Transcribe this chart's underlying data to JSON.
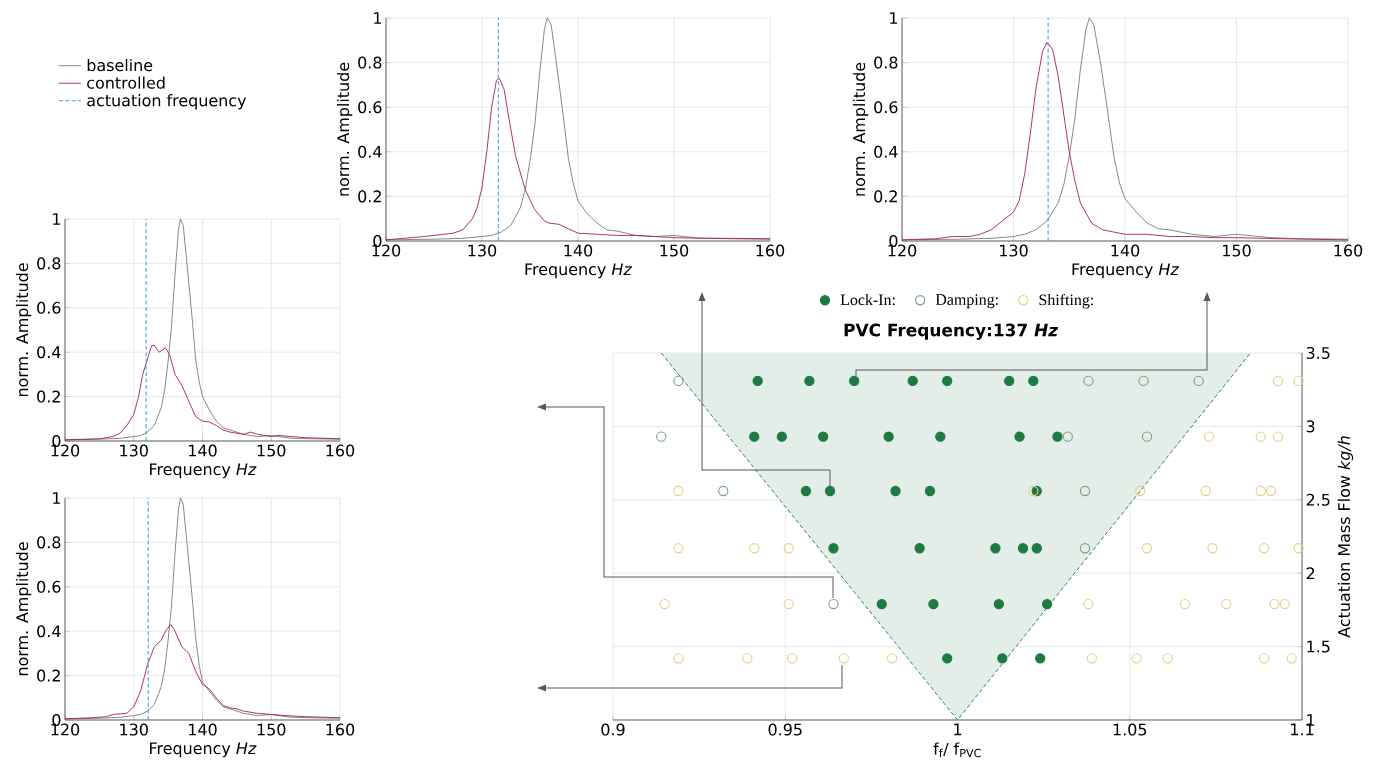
{
  "chart_data": [
    {
      "type": "line",
      "xlabel": "Frequency  *Hz*",
      "ylabel": "norm. Amplitude",
      "xlim": [
        120,
        160
      ],
      "ylim": [
        0,
        1
      ],
      "xticks": [
        120,
        130,
        140,
        150,
        160
      ],
      "yticks": [
        0,
        0.2,
        0.4,
        0.6,
        0.8,
        1
      ],
      "grid": true,
      "series": [
        {
          "color": "#7a7a7a",
          "x": [
            120,
            125,
            128,
            130,
            131,
            132,
            133,
            134,
            134.5,
            135,
            135.5,
            136,
            136.5,
            136.8,
            137.2,
            137.8,
            138.5,
            139,
            139.5,
            140,
            141,
            142,
            143,
            144,
            145,
            146,
            148,
            150,
            151,
            153,
            156,
            160
          ],
          "values": [
            0.005,
            0.008,
            0.012,
            0.02,
            0.025,
            0.04,
            0.07,
            0.15,
            0.23,
            0.36,
            0.52,
            0.75,
            0.95,
            1.0,
            0.97,
            0.78,
            0.55,
            0.37,
            0.26,
            0.18,
            0.12,
            0.08,
            0.05,
            0.045,
            0.035,
            0.025,
            0.02,
            0.025,
            0.02,
            0.012,
            0.01,
            0.008
          ]
        },
        {
          "color": "#a8204a",
          "x": [
            120,
            124,
            126,
            127,
            128,
            129,
            129.5,
            130,
            130.5,
            131,
            131.5,
            131.8,
            132.3,
            132.8,
            133.5,
            134.5,
            135.5,
            136.5,
            137,
            138,
            139,
            140,
            142,
            144,
            146,
            148,
            150,
            152,
            155,
            160
          ],
          "values": [
            0.005,
            0.02,
            0.03,
            0.035,
            0.05,
            0.1,
            0.15,
            0.24,
            0.4,
            0.6,
            0.72,
            0.73,
            0.68,
            0.55,
            0.38,
            0.23,
            0.14,
            0.09,
            0.08,
            0.075,
            0.055,
            0.035,
            0.03,
            0.025,
            0.025,
            0.02,
            0.015,
            0.013,
            0.012,
            0.01
          ]
        }
      ],
      "ref_lines": [
        {
          "axis": "x",
          "value": 131.7,
          "color": "#3a9bd5",
          "line_style": "dashed"
        }
      ]
    },
    {
      "type": "line",
      "xlabel": "Frequency  *Hz*",
      "ylabel": "norm. Amplitude",
      "xlim": [
        120,
        160
      ],
      "ylim": [
        0,
        1
      ],
      "xticks": [
        120,
        130,
        140,
        150,
        160
      ],
      "yticks": [
        0,
        0.2,
        0.4,
        0.6,
        0.8,
        1
      ],
      "grid": true,
      "series": [
        {
          "color": "#7a7a7a",
          "x": [
            120,
            125,
            128,
            130,
            131,
            132,
            133,
            134,
            134.5,
            135,
            135.5,
            136,
            136.5,
            136.8,
            137.2,
            137.8,
            138.5,
            139,
            139.5,
            140,
            141,
            142,
            143,
            144,
            145,
            146,
            148,
            150,
            151,
            153,
            156,
            160
          ],
          "values": [
            0.005,
            0.008,
            0.012,
            0.02,
            0.03,
            0.05,
            0.09,
            0.17,
            0.25,
            0.38,
            0.55,
            0.77,
            0.95,
            1.0,
            0.97,
            0.8,
            0.56,
            0.38,
            0.26,
            0.19,
            0.13,
            0.08,
            0.055,
            0.05,
            0.04,
            0.03,
            0.02,
            0.03,
            0.025,
            0.015,
            0.01,
            0.008
          ]
        },
        {
          "color": "#a8204a",
          "x": [
            120,
            123,
            124.5,
            126,
            127,
            128,
            129,
            130,
            130.5,
            131,
            131.5,
            132,
            132.6,
            133,
            133.5,
            134,
            134.5,
            135,
            135.5,
            136,
            137,
            138,
            139,
            140,
            142,
            144,
            146,
            148,
            150,
            154,
            160
          ],
          "values": [
            0.005,
            0.01,
            0.02,
            0.02,
            0.03,
            0.05,
            0.09,
            0.13,
            0.18,
            0.3,
            0.48,
            0.68,
            0.85,
            0.89,
            0.86,
            0.74,
            0.57,
            0.4,
            0.27,
            0.17,
            0.08,
            0.05,
            0.04,
            0.03,
            0.03,
            0.02,
            0.02,
            0.015,
            0.015,
            0.01,
            0.005
          ]
        }
      ],
      "ref_lines": [
        {
          "axis": "x",
          "value": 133.1,
          "color": "#3a9bd5",
          "line_style": "dashed"
        }
      ]
    },
    {
      "type": "line",
      "xlabel": "Frequency  *Hz*",
      "ylabel": "norm. Amplitude",
      "xlim": [
        120,
        160
      ],
      "ylim": [
        0,
        1
      ],
      "xticks": [
        120,
        130,
        140,
        150,
        160
      ],
      "yticks": [
        0,
        0.2,
        0.4,
        0.6,
        0.8,
        1
      ],
      "grid": true,
      "legend": "top left",
      "series": [
        {
          "name": "baseline",
          "color": "#7a7a7a",
          "x": [
            120,
            125,
            128,
            130,
            131,
            132,
            133,
            134,
            134.5,
            135,
            135.5,
            136,
            136.5,
            136.8,
            137.2,
            137.8,
            138.5,
            139,
            139.5,
            140,
            141,
            142,
            143,
            144,
            145,
            146,
            148,
            150,
            151,
            153,
            156,
            160
          ],
          "values": [
            0.005,
            0.008,
            0.012,
            0.02,
            0.025,
            0.04,
            0.07,
            0.15,
            0.23,
            0.36,
            0.52,
            0.75,
            0.95,
            1.0,
            0.97,
            0.78,
            0.55,
            0.37,
            0.27,
            0.2,
            0.14,
            0.09,
            0.06,
            0.05,
            0.04,
            0.03,
            0.02,
            0.025,
            0.02,
            0.012,
            0.01,
            0.008
          ]
        },
        {
          "name": "controlled",
          "color": "#a8204a",
          "x": [
            120,
            125,
            127,
            128,
            129,
            130,
            130.7,
            131.3,
            132,
            132.6,
            133,
            133.7,
            134.6,
            135.2,
            136,
            137,
            138,
            139,
            140,
            141,
            142,
            143,
            144,
            145,
            146,
            147,
            148,
            150,
            151,
            155,
            160
          ],
          "values": [
            0.005,
            0.01,
            0.02,
            0.035,
            0.07,
            0.12,
            0.2,
            0.3,
            0.37,
            0.43,
            0.43,
            0.4,
            0.42,
            0.39,
            0.3,
            0.25,
            0.18,
            0.11,
            0.09,
            0.085,
            0.07,
            0.05,
            0.04,
            0.035,
            0.03,
            0.04,
            0.03,
            0.02,
            0.025,
            0.015,
            0.01
          ]
        }
      ],
      "ref_lines": [
        {
          "axis": "x",
          "value": 131.8,
          "label": "actuation frequency",
          "color": "#3a9bd5",
          "line_style": "dashed"
        }
      ]
    },
    {
      "type": "line",
      "xlabel": "Frequency  *Hz*",
      "ylabel": "norm. Amplitude",
      "xlim": [
        120,
        160
      ],
      "ylim": [
        0,
        1
      ],
      "xticks": [
        120,
        130,
        140,
        150,
        160
      ],
      "yticks": [
        0,
        0.2,
        0.4,
        0.6,
        0.8,
        1
      ],
      "grid": true,
      "series": [
        {
          "color": "#7a7a7a",
          "x": [
            120,
            125,
            128,
            130,
            131,
            132,
            133,
            134,
            134.5,
            135,
            135.5,
            136,
            136.5,
            136.8,
            137.2,
            137.8,
            138.5,
            139,
            139.5,
            140,
            141,
            142,
            143,
            144,
            145,
            146,
            148,
            150,
            151,
            153,
            156,
            160
          ],
          "values": [
            0.005,
            0.008,
            0.012,
            0.02,
            0.025,
            0.04,
            0.07,
            0.15,
            0.23,
            0.36,
            0.52,
            0.75,
            0.95,
            1.0,
            0.97,
            0.78,
            0.55,
            0.37,
            0.25,
            0.17,
            0.13,
            0.09,
            0.06,
            0.05,
            0.04,
            0.03,
            0.02,
            0.025,
            0.02,
            0.012,
            0.01,
            0.008
          ]
        },
        {
          "color": "#a8204a",
          "x": [
            120,
            124,
            126,
            127,
            129,
            130,
            131,
            132,
            133,
            134,
            134.6,
            135.4,
            136,
            137,
            138,
            139,
            140,
            141,
            142,
            143,
            144,
            145,
            146,
            148,
            150,
            152,
            155,
            160
          ],
          "values": [
            0.005,
            0.01,
            0.015,
            0.025,
            0.03,
            0.06,
            0.13,
            0.25,
            0.33,
            0.36,
            0.4,
            0.43,
            0.4,
            0.33,
            0.3,
            0.22,
            0.16,
            0.14,
            0.1,
            0.065,
            0.055,
            0.05,
            0.04,
            0.03,
            0.025,
            0.02,
            0.015,
            0.01
          ]
        }
      ],
      "ref_lines": [
        {
          "axis": "x",
          "value": 132.1,
          "color": "#3a9bd5",
          "line_style": "dashed"
        }
      ]
    },
    {
      "type": "scatter",
      "title": "PVC Frequency:137  *Hz*",
      "xlabel": "f$_{f}$/ f$_{PVC}$",
      "ylabel": "Actuation Mass Flow  *kg/h*",
      "xlim": [
        0.9,
        1.1
      ],
      "ylim": [
        1,
        3.5
      ],
      "xticks": [
        0.9,
        0.95,
        1,
        1.05,
        1.1
      ],
      "yticks": [
        1,
        1.5,
        2,
        2.5,
        3,
        3.5
      ],
      "grid": true,
      "legend": "top",
      "marker": "circle",
      "series": [
        {
          "type": "line",
          "color": "#1e7a45",
          "line_style": "dashed",
          "marker": "none",
          "x": [
            0.914,
            1,
            1.085
          ],
          "values": [
            3.5,
            1,
            3.5
          ],
          "lower": [
            3.5,
            1,
            3.5
          ],
          "upper": [
            3.5,
            3.5,
            3.5
          ]
        },
        {
          "name": "Lock-In:",
          "color": "#1e7a45",
          "x": [
            0.942,
            0.957,
            0.97,
            0.987,
            0.997,
            1.015,
            1.022,
            0.941,
            0.949,
            0.961,
            0.98,
            0.995,
            1.018,
            1.029,
            0.956,
            0.963,
            0.982,
            0.992,
            1.023,
            0.964,
            0.989,
            1.011,
            1.019,
            1.023,
            0.978,
            0.993,
            1.012,
            1.026,
            0.997,
            1.013,
            1.024
          ],
          "values": [
            3.31,
            3.31,
            3.31,
            3.31,
            3.31,
            3.31,
            3.31,
            2.93,
            2.93,
            2.93,
            2.93,
            2.93,
            2.93,
            2.93,
            2.56,
            2.56,
            2.56,
            2.56,
            2.56,
            2.17,
            2.17,
            2.17,
            2.17,
            2.17,
            1.79,
            1.79,
            1.79,
            1.79,
            1.42,
            1.42,
            1.42
          ]
        },
        {
          "name": "Damping:",
          "color": "#7a9e88",
          "x": [
            0.919,
            1.038,
            1.054,
            1.07,
            0.914,
            1.032,
            1.055,
            0.932,
            1.037,
            1.037,
            0.964
          ],
          "values": [
            3.31,
            3.31,
            3.31,
            3.31,
            2.93,
            2.93,
            2.93,
            2.56,
            2.56,
            2.17,
            1.79
          ]
        },
        {
          "name": "Shifting:",
          "color": "#e6cf84",
          "x": [
            1.093,
            1.099,
            1.073,
            1.088,
            1.093,
            0.919,
            1.022,
            1.053,
            1.072,
            1.088,
            1.091,
            0.919,
            0.941,
            0.951,
            1.055,
            1.074,
            1.089,
            1.099,
            0.915,
            0.951,
            1.038,
            1.066,
            1.078,
            1.092,
            1.095,
            0.919,
            0.939,
            0.952,
            0.967,
            0.981,
            1.039,
            1.052,
            1.061,
            1.089,
            1.097
          ],
          "values": [
            3.31,
            3.31,
            2.93,
            2.93,
            2.93,
            2.56,
            2.56,
            2.56,
            2.56,
            2.56,
            2.56,
            2.17,
            2.17,
            2.17,
            2.17,
            2.17,
            2.17,
            2.17,
            1.79,
            1.79,
            1.79,
            1.79,
            1.79,
            1.79,
            1.79,
            1.42,
            1.42,
            1.42,
            1.42,
            1.42,
            1.42,
            1.42,
            1.42,
            1.42,
            1.42
          ]
        }
      ]
    }
  ]
}
